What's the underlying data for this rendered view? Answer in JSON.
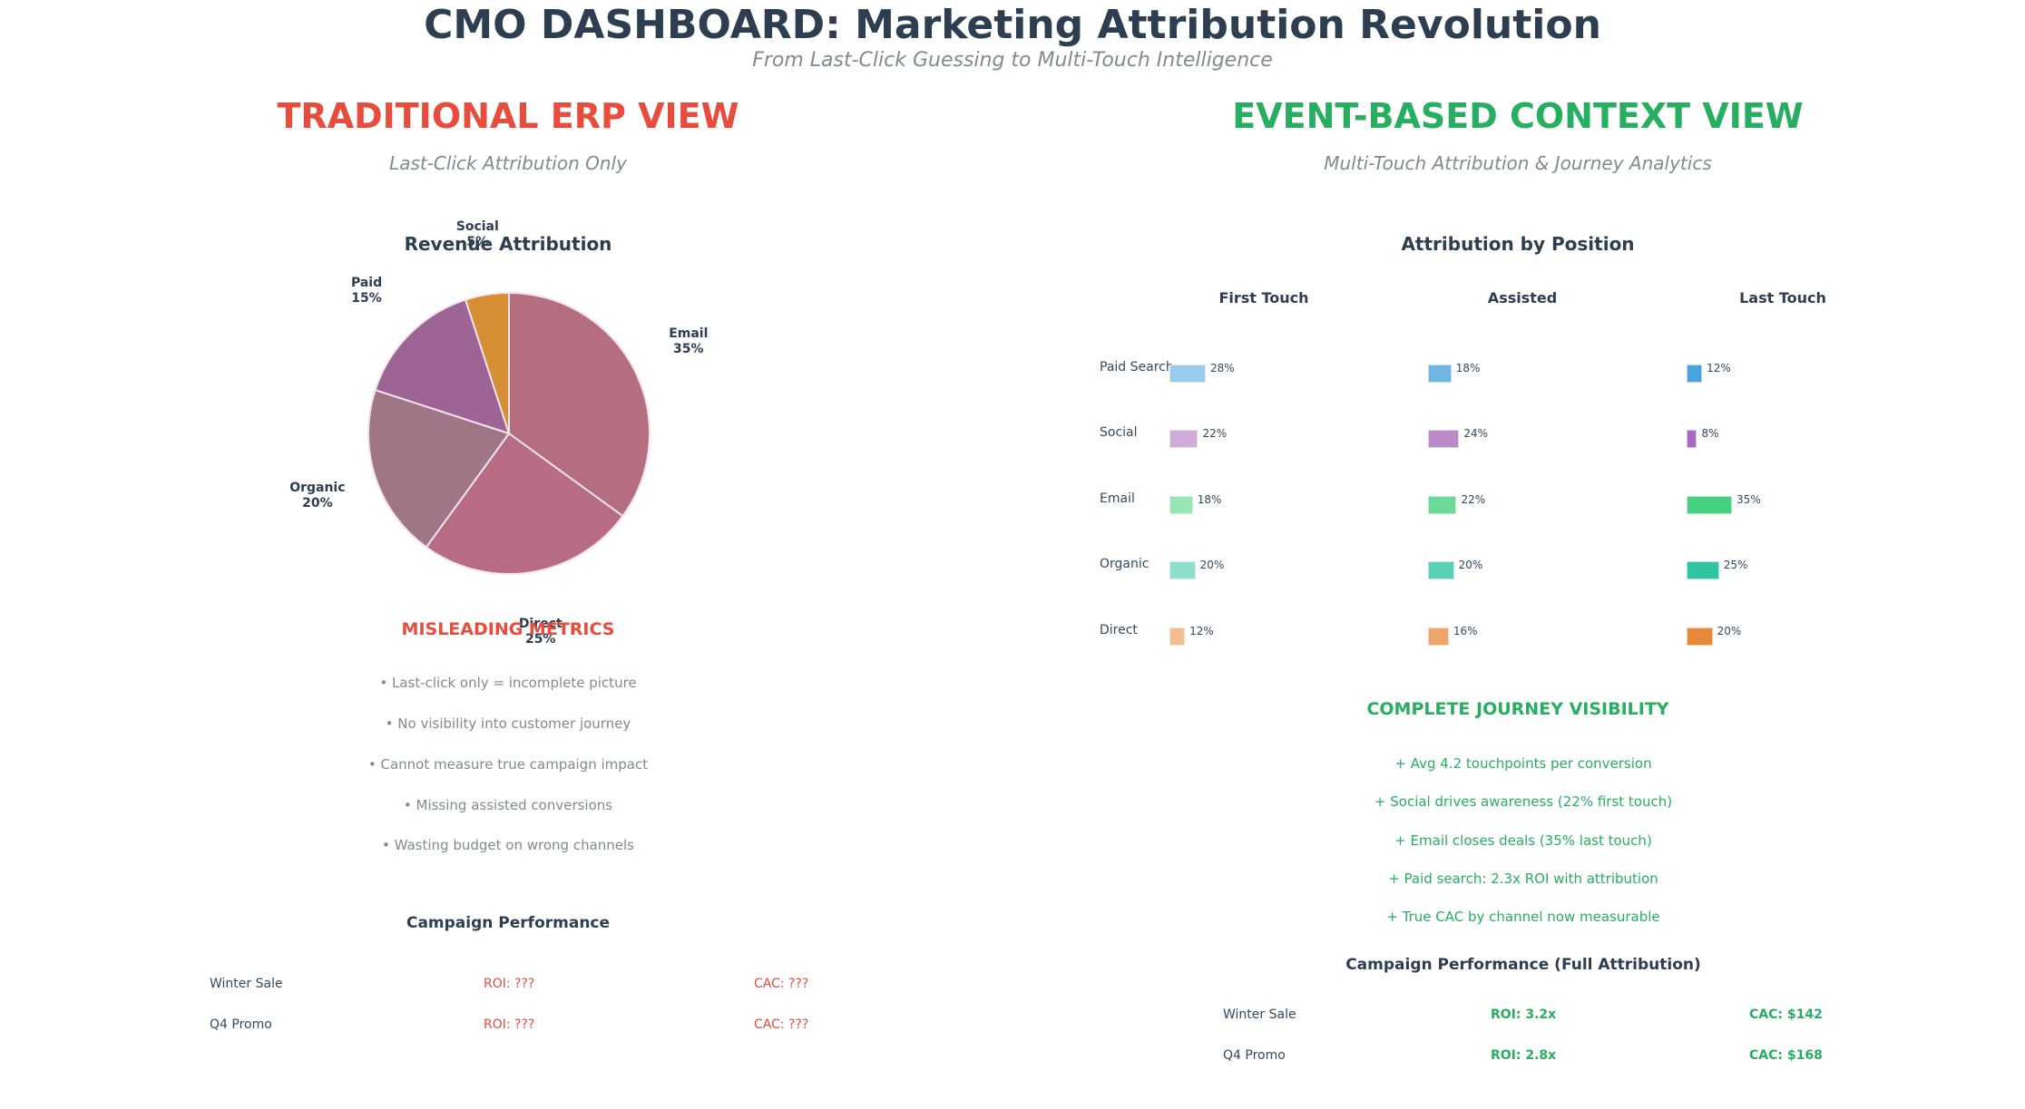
{
  "header": {
    "title": "CMO DASHBOARD: Marketing Attribution Revolution",
    "subtitle": "From Last-Click Guessing to Multi-Touch Intelligence"
  },
  "left_panel": {
    "title": "TRADITIONAL ERP VIEW",
    "subtitle": "Last-Click Attribution Only",
    "misleading": {
      "heading": "MISLEADING METRICS",
      "items": [
        "• Last-click only = incomplete picture",
        "• No visibility into customer journey",
        "• Cannot measure true campaign impact",
        "• Missing assisted conversions",
        "• Wasting budget on wrong channels"
      ]
    },
    "campaigns": {
      "title": "Campaign Performance",
      "rows": [
        {
          "name": "Winter Sale",
          "roi": "ROI: ???",
          "cac": "CAC: ???"
        },
        {
          "name": "Q4 Promo",
          "roi": "ROI: ???",
          "cac": "CAC: ???"
        }
      ]
    }
  },
  "right_panel": {
    "title": "EVENT-BASED CONTEXT VIEW",
    "subtitle": "Multi-Touch Attribution & Journey Analytics",
    "visibility": {
      "heading": "COMPLETE JOURNEY VISIBILITY",
      "items": [
        "+ Avg 4.2 touchpoints per conversion",
        "+ Social drives awareness (22% first touch)",
        "+ Email closes deals (35% last touch)",
        "+ Paid search: 2.3x ROI with attribution",
        "+ True CAC by channel now measurable"
      ]
    },
    "campaigns": {
      "title": "Campaign Performance (Full Attribution)",
      "rows": [
        {
          "name": "Winter Sale",
          "roi": "ROI: 3.2x",
          "cac": "CAC: $142"
        },
        {
          "name": "Q4 Promo",
          "roi": "ROI: 2.8x",
          "cac": "CAC: $168"
        }
      ]
    }
  },
  "colors": {
    "traditional_accent": "#e74c3c",
    "event_accent": "#27ae60",
    "text_dark": "#2c3e50",
    "text_muted": "#7f8c8d"
  },
  "chart_data": [
    {
      "type": "pie",
      "title": "Revenue Attribution",
      "start_angle": "top, clockwise",
      "slices": [
        {
          "label": "Email",
          "value": 35,
          "display": "35%",
          "color": "#b56e80"
        },
        {
          "label": "Direct",
          "value": 25,
          "display": "25%",
          "color": "#b76c84"
        },
        {
          "label": "Organic",
          "value": 20,
          "display": "20%",
          "color": "#a07686"
        },
        {
          "label": "Paid",
          "value": 15,
          "display": "15%",
          "color": "#9e6496"
        },
        {
          "label": "Social",
          "value": 5,
          "display": "5%",
          "color": "#d58e34"
        }
      ]
    },
    {
      "type": "bar",
      "orientation": "horizontal",
      "title": "Attribution by Position",
      "categories": [
        "Paid Search",
        "Social",
        "Email",
        "Organic",
        "Direct"
      ],
      "series": [
        {
          "name": "First Touch",
          "values": [
            28,
            22,
            18,
            20,
            12
          ],
          "colors": [
            "#9bcbec",
            "#d0aad9",
            "#97e5b3",
            "#8ddfcc",
            "#f2bd91"
          ]
        },
        {
          "name": "Assisted",
          "values": [
            18,
            24,
            22,
            20,
            16
          ],
          "colors": [
            "#6fb5e3",
            "#bb8bc9",
            "#6dd998",
            "#5ccfb8",
            "#eea56b"
          ]
        },
        {
          "name": "Last Touch",
          "values": [
            12,
            8,
            35,
            25,
            20
          ],
          "colors": [
            "#4aa3df",
            "#a569bd",
            "#45d17f",
            "#30c4a3",
            "#e68a39"
          ]
        }
      ],
      "value_suffix": "%"
    }
  ]
}
